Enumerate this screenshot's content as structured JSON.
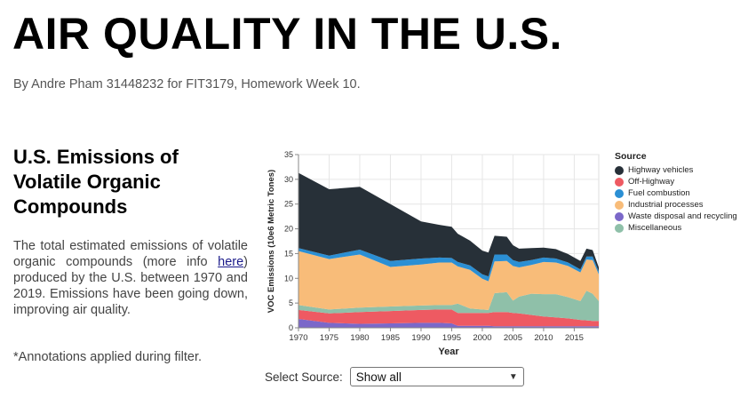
{
  "header": {
    "title": "AIR QUALITY IN THE U.S.",
    "byline": "By Andre Pham 31448232 for FIT3179, Homework Week 10."
  },
  "section": {
    "title": "U.S. Emissions of Volatile Organic Compounds",
    "desc_part1": "The total estimated emissions of volatile organic compounds (more info ",
    "desc_link": "here",
    "desc_part2": ") produced by the U.S. between 1970 and 2019. Emissions have been going down, improving air quality.",
    "note": "*Annotations applied during filter."
  },
  "filter": {
    "label": "Select Source:",
    "selected": "Show all"
  },
  "chart_data": {
    "type": "area",
    "stacked": true,
    "xlabel": "Year",
    "ylabel": "VOC Emissions (10e6 Metric Tones)",
    "ylim": [
      0,
      35
    ],
    "yticks": [
      0,
      5,
      10,
      15,
      20,
      25,
      30,
      35
    ],
    "xticks": [
      1970,
      1975,
      1980,
      1985,
      1990,
      1995,
      2000,
      2005,
      2010,
      2015
    ],
    "xlim": [
      1970,
      2019
    ],
    "grid": true,
    "legend_title": "Source",
    "legend_position": "right",
    "x": [
      1970,
      1975,
      1980,
      1985,
      1990,
      1993,
      1995,
      1996,
      1998,
      2000,
      2001,
      2002,
      2004,
      2005,
      2006,
      2008,
      2010,
      2012,
      2014,
      2016,
      2017,
      2018,
      2019
    ],
    "series": [
      {
        "name": "Waste disposal and recycling",
        "color": "#7b68c9",
        "values": [
          1.8,
          1.0,
          0.8,
          0.9,
          1.0,
          1.0,
          0.9,
          0.4,
          0.4,
          0.4,
          0.4,
          0.3,
          0.3,
          0.3,
          0.3,
          0.3,
          0.3,
          0.3,
          0.3,
          0.3,
          0.3,
          0.3,
          0.3
        ]
      },
      {
        "name": "Off-Highway",
        "color": "#ee5a62",
        "values": [
          1.8,
          1.9,
          2.4,
          2.5,
          2.6,
          2.7,
          2.8,
          2.6,
          2.6,
          2.6,
          2.6,
          2.9,
          2.9,
          2.7,
          2.6,
          2.3,
          2.0,
          1.8,
          1.6,
          1.3,
          1.2,
          1.1,
          1.1
        ]
      },
      {
        "name": "Miscellaneous",
        "color": "#8fc0a9",
        "values": [
          1.0,
          0.8,
          0.9,
          0.9,
          0.9,
          0.9,
          0.9,
          1.9,
          0.9,
          0.7,
          0.6,
          3.8,
          4.0,
          2.5,
          3.4,
          4.3,
          4.5,
          4.7,
          4.3,
          3.8,
          6.0,
          5.5,
          4.0
        ]
      },
      {
        "name": "Industrial processes",
        "color": "#f8bc79",
        "values": [
          10.9,
          10.2,
          10.7,
          8.0,
          8.3,
          8.6,
          8.6,
          7.5,
          7.8,
          6.2,
          5.8,
          6.4,
          6.3,
          7.0,
          5.9,
          5.8,
          6.5,
          6.4,
          6.3,
          5.8,
          6.3,
          6.8,
          5.4
        ]
      },
      {
        "name": "Fuel combustion",
        "color": "#2b8fd4",
        "values": [
          0.6,
          0.7,
          1.0,
          1.2,
          1.2,
          1.0,
          0.9,
          0.9,
          0.9,
          0.9,
          1.0,
          1.4,
          1.3,
          1.2,
          1.1,
          1.0,
          0.9,
          0.8,
          0.7,
          0.6,
          0.6,
          0.7,
          0.6
        ]
      },
      {
        "name": "Highway vehicles",
        "color": "#273038",
        "values": [
          15.2,
          13.4,
          12.7,
          11.5,
          7.5,
          6.6,
          6.3,
          5.7,
          5.0,
          4.8,
          4.8,
          3.8,
          3.6,
          3.0,
          2.7,
          2.4,
          2.0,
          1.9,
          1.7,
          1.7,
          1.6,
          1.3,
          0.8
        ]
      }
    ],
    "legend_order": [
      "Highway vehicles",
      "Off-Highway",
      "Fuel combustion",
      "Industrial processes",
      "Waste disposal and recycling",
      "Miscellaneous"
    ]
  }
}
